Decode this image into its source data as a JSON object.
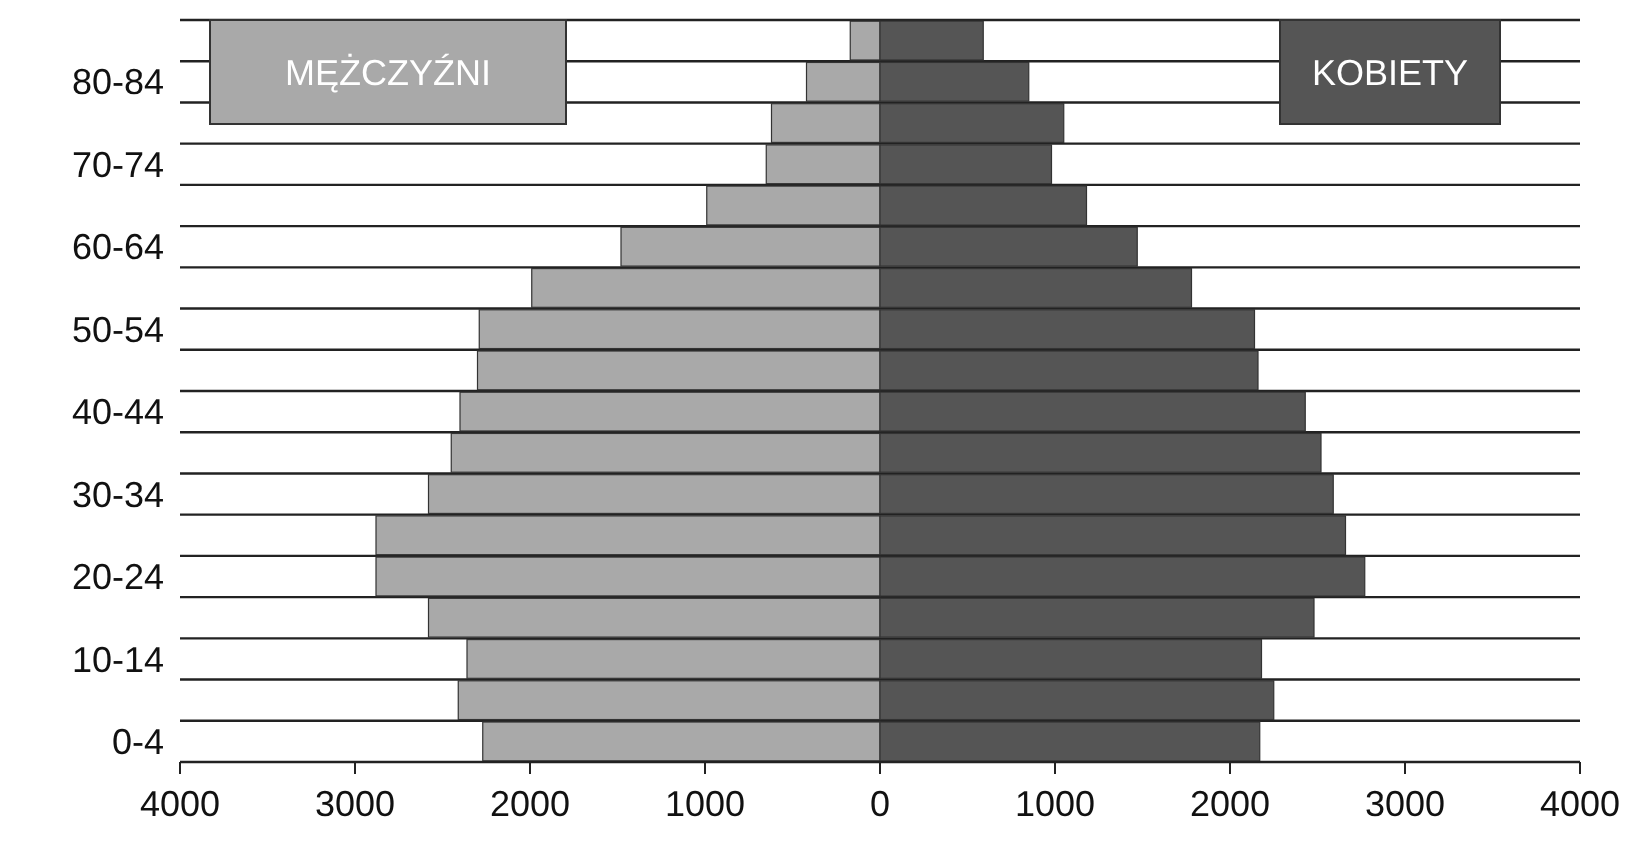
{
  "chart_data": {
    "type": "bar",
    "orientation": "horizontal",
    "stacked": true,
    "categories": [
      null,
      "80-84",
      null,
      "70-74",
      null,
      "60-64",
      null,
      "50-54",
      null,
      "40-44",
      null,
      "30-34",
      null,
      "20-24",
      null,
      "10-14",
      null,
      "0-4"
    ],
    "series": [
      {
        "name": "MĘŻCZYŹNI",
        "color": "#a9a9a9",
        "values": [
          -170,
          -420,
          -620,
          -650,
          -990,
          -1480,
          -1990,
          -2290,
          -2300,
          -2400,
          -2450,
          -2580,
          -2880,
          -2880,
          -2580,
          -2360,
          -2410,
          -2270
        ]
      },
      {
        "name": "KOBIETY",
        "color": "#555555",
        "values": [
          590,
          850,
          1050,
          980,
          1180,
          1470,
          1780,
          2140,
          2160,
          2430,
          2520,
          2590,
          2660,
          2770,
          2480,
          2180,
          2250,
          2170
        ]
      }
    ],
    "xlim": [
      -4000,
      4000
    ],
    "xticks": [
      {
        "value": -4000,
        "label": "4000"
      },
      {
        "value": -3000,
        "label": "3000"
      },
      {
        "value": -2000,
        "label": "2000"
      },
      {
        "value": -1000,
        "label": "1000"
      },
      0,
      1000,
      2000,
      3000,
      4000
    ],
    "grid": "y",
    "legend": "top"
  }
}
